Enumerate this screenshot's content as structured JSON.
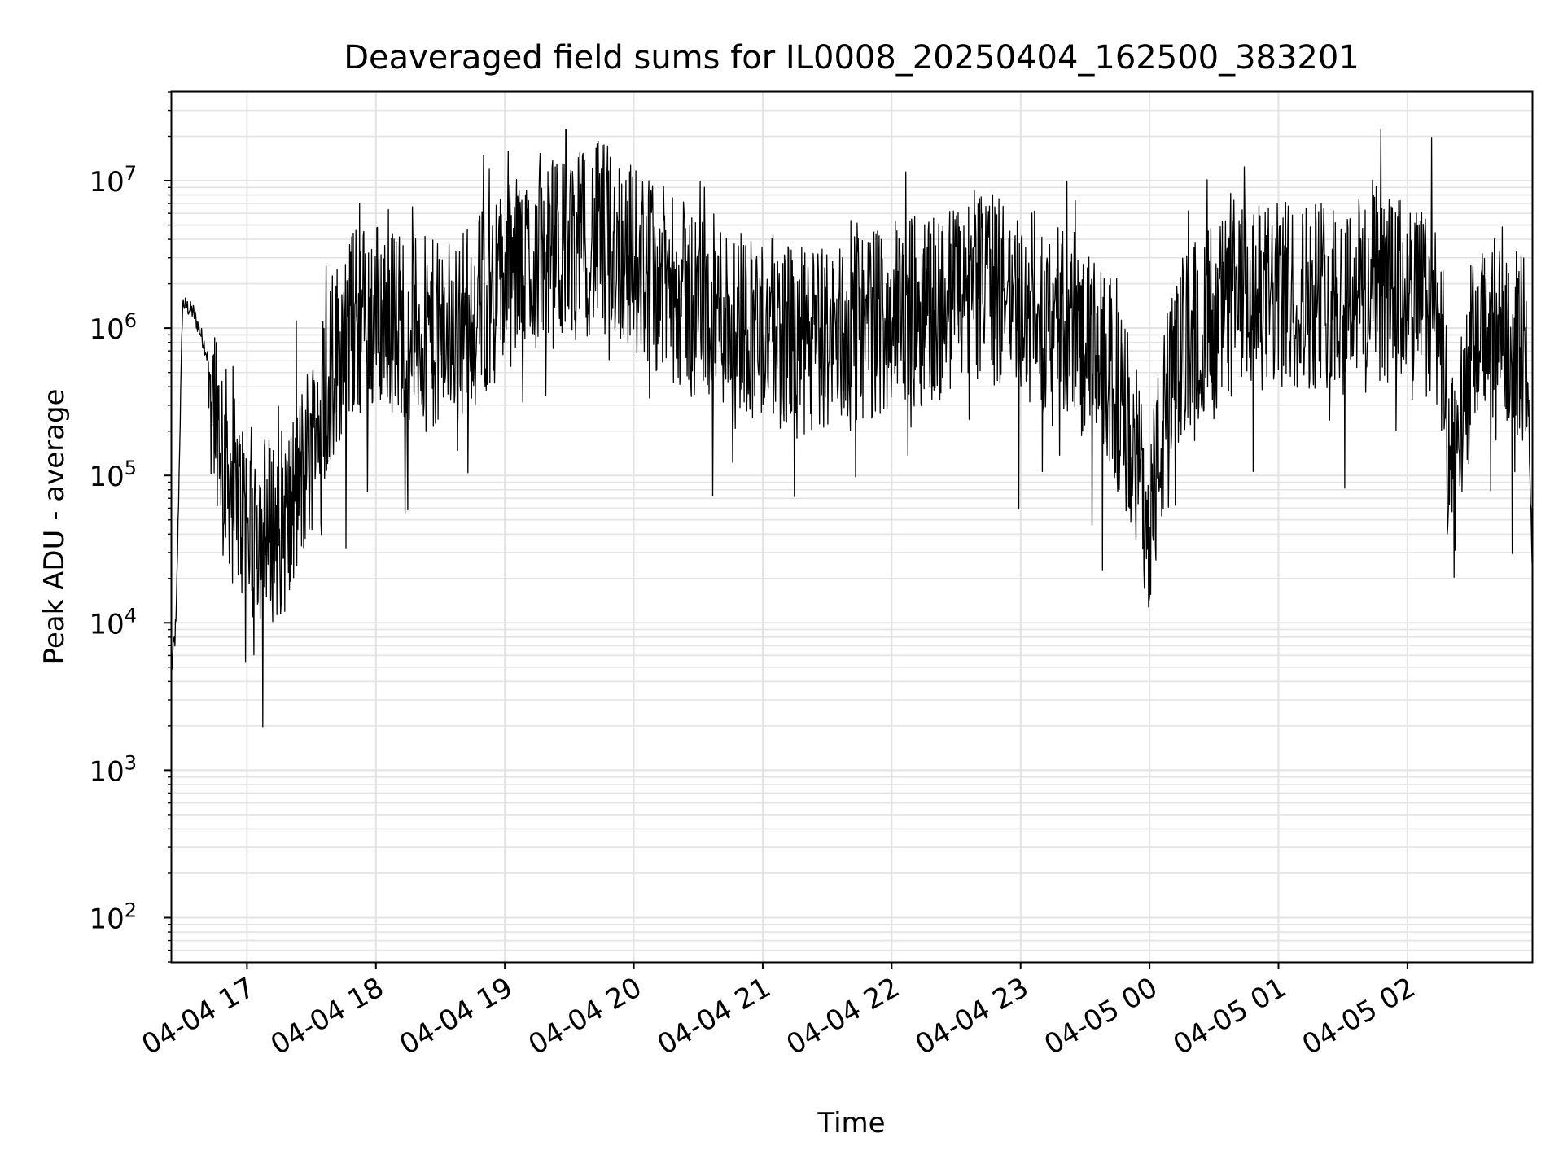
{
  "chart_data": {
    "type": "line",
    "title": "Deaveraged field sums for IL0008_20250404_162500_383201",
    "xlabel": "Time",
    "ylabel": "Peak ADU - average",
    "yscale": "log",
    "ylim": [
      50,
      40000000
    ],
    "xlim": [
      "2025-04-04 16:25",
      "2025-04-05 02:58"
    ],
    "grid": true,
    "line_color": "#000000",
    "x_tick_labels": [
      "04-04 17",
      "04-04 18",
      "04-04 19",
      "04-04 20",
      "04-04 21",
      "04-04 22",
      "04-04 23",
      "04-05 00",
      "04-05 01",
      "04-05 02"
    ],
    "y_ticks": [
      {
        "base": "10",
        "exp": "2",
        "value": 100
      },
      {
        "base": "10",
        "exp": "3",
        "value": 1000
      },
      {
        "base": "10",
        "exp": "4",
        "value": 10000
      },
      {
        "base": "10",
        "exp": "5",
        "value": 100000
      },
      {
        "base": "10",
        "exp": "6",
        "value": 1000000
      },
      {
        "base": "10",
        "exp": "7",
        "value": 10000000
      }
    ],
    "series": [
      {
        "x": [
          "2025-04-04 16:25",
          "2025-04-04 16:27",
          "2025-04-04 16:30",
          "2025-04-04 16:35",
          "2025-04-04 16:40",
          "2025-04-04 16:45",
          "2025-04-04 16:50",
          "2025-04-04 16:55",
          "2025-04-04 17:00",
          "2025-04-04 17:10",
          "2025-04-04 17:20",
          "2025-04-04 17:30",
          "2025-04-04 17:40",
          "2025-04-04 17:50",
          "2025-04-04 18:00",
          "2025-04-04 18:15",
          "2025-04-04 18:30",
          "2025-04-04 18:45",
          "2025-04-04 19:00",
          "2025-04-04 19:15",
          "2025-04-04 19:30",
          "2025-04-04 19:45",
          "2025-04-04 20:00",
          "2025-04-04 20:20",
          "2025-04-04 20:40",
          "2025-04-04 21:00",
          "2025-04-04 21:20",
          "2025-04-04 21:40",
          "2025-04-04 22:00",
          "2025-04-04 22:20",
          "2025-04-04 22:40",
          "2025-04-04 23:00",
          "2025-04-04 23:20",
          "2025-04-04 23:40",
          "2025-04-04 23:50",
          "2025-04-05 00:00",
          "2025-04-05 00:10",
          "2025-04-05 00:20",
          "2025-04-05 00:40",
          "2025-04-05 01:00",
          "2025-04-05 01:20",
          "2025-04-05 01:40",
          "2025-04-05 02:00",
          "2025-04-05 02:15",
          "2025-04-05 02:20",
          "2025-04-05 02:30",
          "2025-04-05 02:45",
          "2025-04-05 02:55",
          "2025-04-05 02:58"
        ],
        "values": [
          5000,
          10000,
          1500000,
          1300000,
          800000,
          400000,
          150000,
          80000,
          60000,
          50000,
          60000,
          200000,
          700000,
          1300000,
          1500000,
          1200000,
          1000000,
          1500000,
          2500000,
          3500000,
          4000000,
          5000000,
          3500000,
          2000000,
          1500000,
          1200000,
          900000,
          1100000,
          1400000,
          1600000,
          2300000,
          1800000,
          1300000,
          600000,
          250000,
          60000,
          500000,
          1200000,
          1700000,
          1900000,
          2000000,
          2200000,
          2000000,
          1500000,
          100000,
          800000,
          1300000,
          800000,
          30000
        ],
        "spikiness": 1.3
      }
    ]
  }
}
